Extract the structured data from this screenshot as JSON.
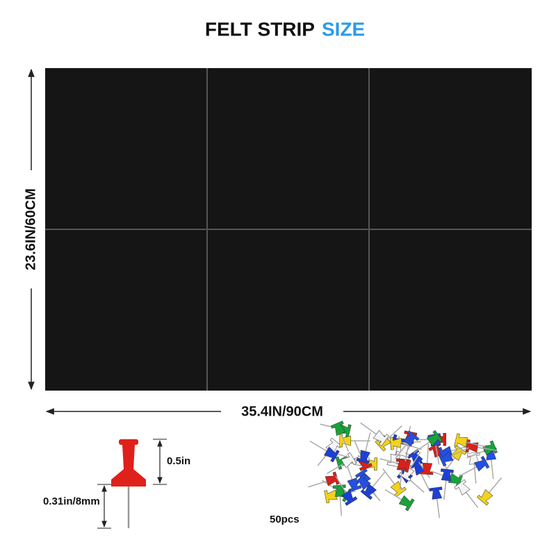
{
  "title": {
    "part1": "FELT STRIP",
    "part2": "SIZE"
  },
  "dimensions": {
    "height": "23.6IN/60CM",
    "width": "35.4IN/90CM"
  },
  "pin": {
    "head_height": "0.5in",
    "needle_length": "0.31in/8mm"
  },
  "pack": {
    "quantity": "50pcs"
  }
}
